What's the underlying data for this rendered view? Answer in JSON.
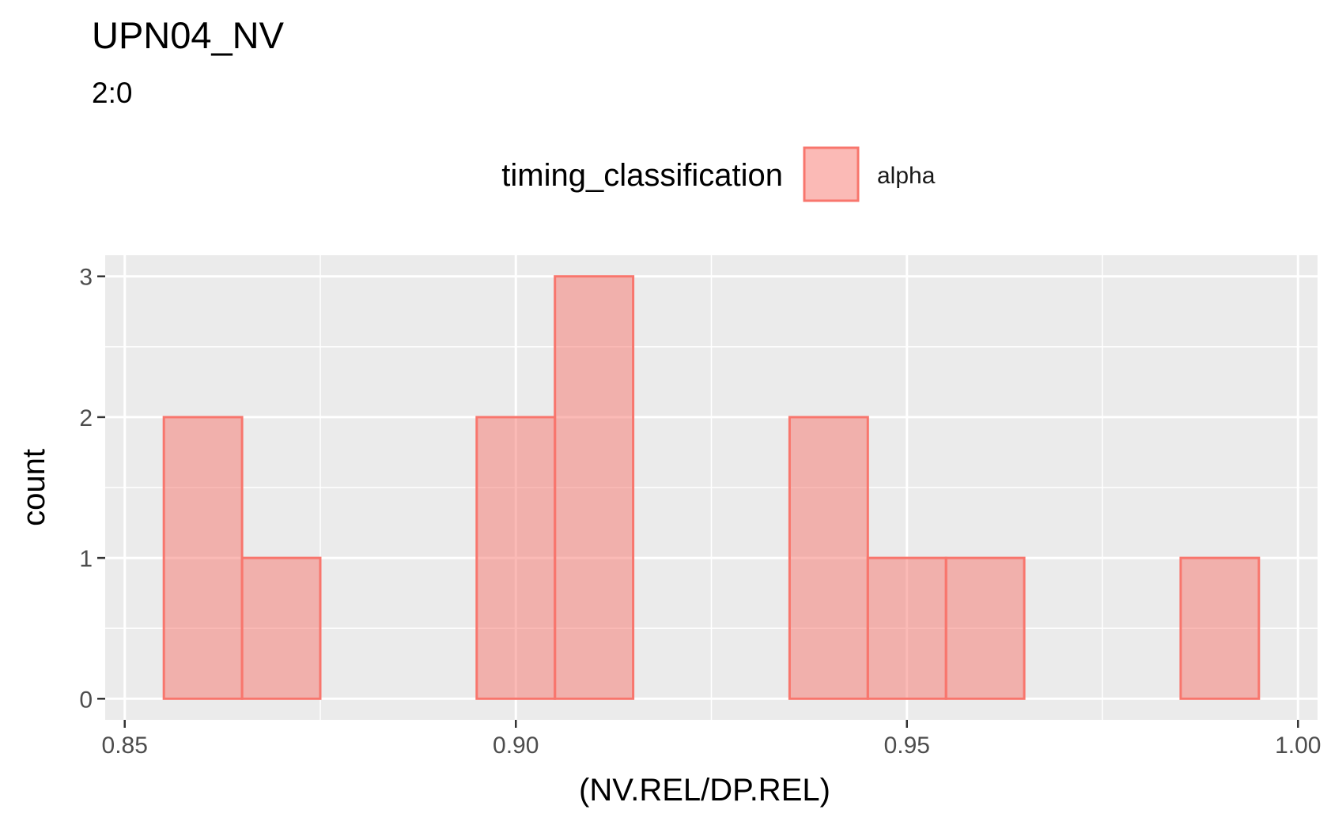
{
  "chart_data": {
    "type": "bar",
    "title": "UPN04_NV",
    "subtitle": "2:0",
    "xlabel": "(NV.REL/DP.REL)",
    "ylabel": "count",
    "xlim": [
      0.8475,
      1.0025
    ],
    "ylim": [
      -0.15,
      3.15
    ],
    "x_ticks": [
      0.85,
      0.9,
      0.95,
      1.0
    ],
    "x_tick_labels": [
      "0.85",
      "0.90",
      "0.95",
      "1.00"
    ],
    "y_ticks": [
      0,
      1,
      2,
      3
    ],
    "y_tick_labels": [
      "0",
      "1",
      "2",
      "3"
    ],
    "grid": true,
    "legend": {
      "title": "timing_classification",
      "position": "top",
      "entries": [
        "alpha"
      ]
    },
    "bin_width": 0.01,
    "series": [
      {
        "name": "alpha",
        "color": "#F8766D",
        "fill": "#F8766D",
        "fill_alpha": 0.5,
        "bins": [
          {
            "x": 0.86,
            "count": 2
          },
          {
            "x": 0.87,
            "count": 1
          },
          {
            "x": 0.88,
            "count": 0
          },
          {
            "x": 0.89,
            "count": 0
          },
          {
            "x": 0.9,
            "count": 2
          },
          {
            "x": 0.91,
            "count": 3
          },
          {
            "x": 0.92,
            "count": 0
          },
          {
            "x": 0.93,
            "count": 0
          },
          {
            "x": 0.94,
            "count": 2
          },
          {
            "x": 0.95,
            "count": 1
          },
          {
            "x": 0.96,
            "count": 1
          },
          {
            "x": 0.97,
            "count": 0
          },
          {
            "x": 0.98,
            "count": 0
          },
          {
            "x": 0.99,
            "count": 1
          }
        ]
      }
    ],
    "colors": {
      "panel_background": "#EBEBEB",
      "grid_line": "#FFFFFF",
      "tick_color": "#333333"
    }
  }
}
